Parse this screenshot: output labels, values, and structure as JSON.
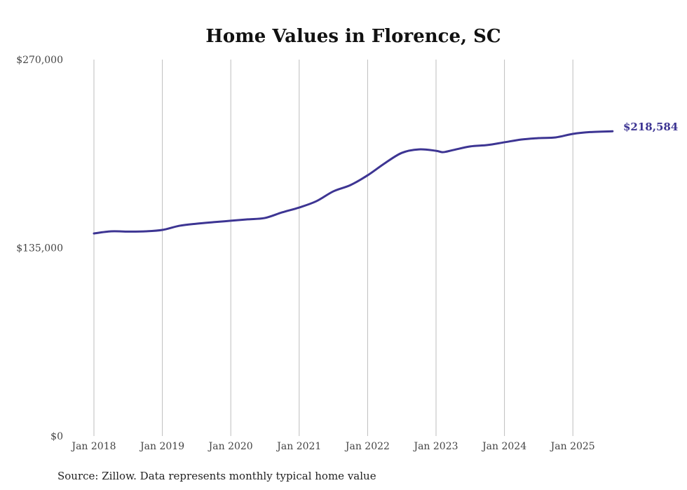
{
  "chart_data": {
    "type": "line",
    "title": "Home Values in Florence, SC",
    "xlabel": "",
    "ylabel": "",
    "ylim": [
      0,
      270000
    ],
    "xlim": [
      2018.0,
      2025.58
    ],
    "y_ticks": [
      {
        "value": 0,
        "label": "$0"
      },
      {
        "value": 135000,
        "label": "$135,000"
      },
      {
        "value": 270000,
        "label": "$270,000"
      }
    ],
    "x_ticks": [
      {
        "value": 2018,
        "label": "Jan 2018"
      },
      {
        "value": 2019,
        "label": "Jan 2019"
      },
      {
        "value": 2020,
        "label": "Jan 2020"
      },
      {
        "value": 2021,
        "label": "Jan 2021"
      },
      {
        "value": 2022,
        "label": "Jan 2022"
      },
      {
        "value": 2023,
        "label": "Jan 2023"
      },
      {
        "value": 2024,
        "label": "Jan 2024"
      },
      {
        "value": 2025,
        "label": "Jan 2025"
      }
    ],
    "grid": "vertical",
    "series": [
      {
        "name": "Typical home value",
        "color": "#3d3593",
        "x": [
          2018.0,
          2018.25,
          2018.5,
          2018.75,
          2019.0,
          2019.25,
          2019.5,
          2019.75,
          2020.0,
          2020.25,
          2020.5,
          2020.75,
          2021.0,
          2021.25,
          2021.5,
          2021.75,
          2022.0,
          2022.25,
          2022.5,
          2022.75,
          2023.0,
          2023.1,
          2023.25,
          2023.5,
          2023.75,
          2024.0,
          2024.25,
          2024.5,
          2024.75,
          2025.0,
          2025.25,
          2025.58
        ],
        "values": [
          145300,
          146800,
          146600,
          146800,
          147800,
          150800,
          152300,
          153400,
          154400,
          155400,
          156400,
          160400,
          163900,
          168400,
          175500,
          180000,
          187000,
          195600,
          203100,
          205600,
          204600,
          203600,
          205100,
          207700,
          208700,
          210700,
          212700,
          213700,
          214200,
          216700,
          218000,
          218584
        ]
      }
    ],
    "end_label": "$218,584",
    "source": "Source: Zillow. Data represents monthly typical home value"
  }
}
